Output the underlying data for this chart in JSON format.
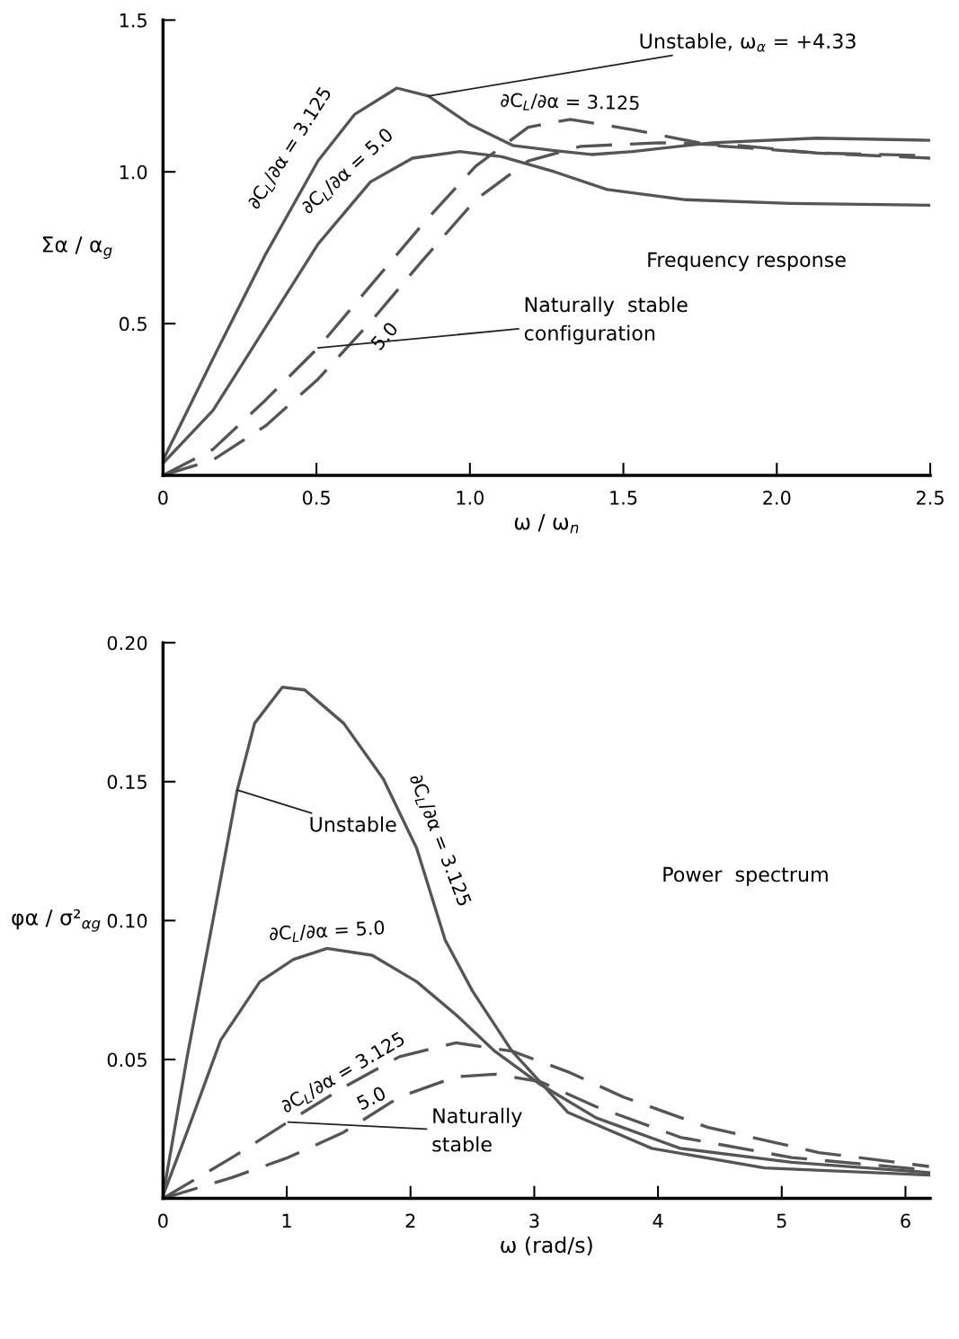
{
  "chart_data": [
    {
      "type": "line",
      "xlabel": "ω / ω$_{n}$",
      "ylabel": "Σα / α$_{g}$",
      "xlim": [
        0,
        2.5
      ],
      "ylim": [
        0,
        1.5
      ],
      "xticks": [
        0,
        0.5,
        {
          "value": 1,
          "label": "1.0"
        },
        1.5,
        {
          "value": 2,
          "label": "2.0"
        },
        2.5
      ],
      "yticks": [
        0.5,
        {
          "value": 1,
          "label": "1.0"
        },
        1.5
      ],
      "grid": false,
      "legend": false,
      "marker": "none",
      "annotations": [
        {
          "text": "Unstable, ω$_{α}$ = +4.33",
          "x": 0.865,
          "y": 1.25
        },
        "Frequency response",
        {
          "text": "Naturally  stable\nconfiguration",
          "x": 0.505,
          "y": 0.42
        }
      ],
      "series": [
        {
          "name": "∂C$_{L}$/∂α = 3.125",
          "color": "#555555",
          "line_style": "solid",
          "x": [
            0,
            0.163,
            0.334,
            0.505,
            0.625,
            0.762,
            0.865,
            1.0,
            1.139,
            1.276,
            1.396,
            1.53,
            1.79,
            2.13,
            2.5
          ],
          "values": [
            0.05,
            0.385,
            0.728,
            1.036,
            1.19,
            1.276,
            1.25,
            1.156,
            1.087,
            1.07,
            1.057,
            1.067,
            1.096,
            1.111,
            1.104
          ]
        },
        {
          "name": "∂C$_{L}$/∂α = 5.0",
          "color": "#555555",
          "line_style": "solid",
          "x": [
            0,
            0.163,
            0.334,
            0.505,
            0.676,
            0.813,
            0.967,
            1.104,
            1.276,
            1.447,
            1.704,
            2.046,
            2.5
          ],
          "values": [
            0.04,
            0.214,
            0.488,
            0.762,
            0.967,
            1.045,
            1.067,
            1.05,
            1.0,
            0.942,
            0.908,
            0.896,
            0.89
          ]
        },
        {
          "name": "∂C$_{L}$/∂α = 3.125",
          "color": "#555555",
          "line_style": "dashed",
          "x": [
            0,
            0.163,
            0.334,
            0.505,
            0.676,
            0.848,
            1.019,
            1.19,
            1.327,
            1.53,
            1.79,
            2.13,
            2.5
          ],
          "values": [
            0,
            0.086,
            0.248,
            0.42,
            0.625,
            0.83,
            1.019,
            1.147,
            1.173,
            1.139,
            1.087,
            1.062,
            1.053
          ]
        },
        {
          "name": "5.0",
          "color": "#555555",
          "line_style": "dashed",
          "x": [
            0,
            0.163,
            0.334,
            0.505,
            0.676,
            0.848,
            1.019,
            1.19,
            1.361,
            1.618,
            1.875,
            2.13,
            2.5
          ],
          "values": [
            0,
            0.051,
            0.163,
            0.317,
            0.505,
            0.711,
            0.908,
            1.036,
            1.084,
            1.096,
            1.087,
            1.062,
            1.045
          ]
        }
      ]
    },
    {
      "type": "line",
      "xlabel": "ω (rad/s)",
      "ylabel": "φα / σ²$_{αg}$",
      "xlim": [
        0,
        6.2
      ],
      "ylim": [
        0,
        0.2
      ],
      "xticks": [
        0,
        1,
        2,
        3,
        4,
        5,
        6
      ],
      "yticks": [
        {
          "value": 0.05,
          "label": "0.05"
        },
        {
          "value": 0.1,
          "label": "0.10"
        },
        {
          "value": 0.15,
          "label": "0.15"
        },
        {
          "value": 0.2,
          "label": "0.20"
        }
      ],
      "grid": false,
      "legend": false,
      "marker": "none",
      "annotations": [
        {
          "text": "Unstable",
          "x": 0.6,
          "y": 0.147
        },
        "Power  spectrum",
        {
          "text": "Naturally\nstable",
          "x": 1.01,
          "y": 0.0275
        }
      ],
      "series": [
        {
          "name": "∂C$_{L}$/∂α = 3.125",
          "color": "#555555",
          "line_style": "solid",
          "x": [
            0,
            0.195,
            0.42,
            0.6,
            0.74,
            0.964,
            1.145,
            1.46,
            1.78,
            2.05,
            2.28,
            2.5,
            2.82,
            3.27,
            3.95,
            4.86,
            6.19
          ],
          "values": [
            0.001,
            0.051,
            0.104,
            0.147,
            0.171,
            0.184,
            0.183,
            0.171,
            0.151,
            0.126,
            0.093,
            0.0747,
            0.053,
            0.031,
            0.018,
            0.011,
            0.0084
          ]
        },
        {
          "name": "∂C$_{L}$/∂α = 5.0",
          "color": "#555555",
          "line_style": "solid",
          "x": [
            0,
            0.195,
            0.466,
            0.783,
            1.054,
            1.326,
            1.69,
            2.05,
            2.37,
            2.68,
            3.05,
            3.5,
            4.18,
            5.08,
            6.19
          ],
          "values": [
            0.001,
            0.024,
            0.057,
            0.078,
            0.086,
            0.09,
            0.0875,
            0.078,
            0.066,
            0.053,
            0.041,
            0.029,
            0.018,
            0.013,
            0.0093
          ]
        },
        {
          "name": "∂C$_{L}$/∂α = 3.125",
          "color": "#555555",
          "line_style": "dashed",
          "x": [
            0,
            0.557,
            1.01,
            1.46,
            1.91,
            2.37,
            2.82,
            3.27,
            3.72,
            4.4,
            5.3,
            6.19
          ],
          "values": [
            0,
            0.0147,
            0.0275,
            0.04,
            0.051,
            0.056,
            0.053,
            0.0456,
            0.0365,
            0.0256,
            0.0165,
            0.0115
          ]
        },
        {
          "name": "5.0",
          "color": "#555555",
          "line_style": "dashed",
          "x": [
            0,
            0.557,
            1.01,
            1.46,
            1.91,
            2.37,
            2.68,
            3.05,
            3.5,
            4.18,
            5.08,
            6.19
          ],
          "values": [
            0,
            0.0075,
            0.0147,
            0.0238,
            0.0365,
            0.0438,
            0.0447,
            0.042,
            0.033,
            0.022,
            0.0147,
            0.0102
          ]
        }
      ]
    }
  ]
}
